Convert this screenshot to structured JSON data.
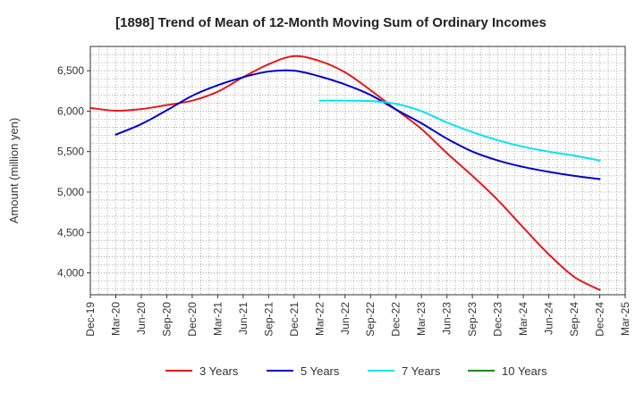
{
  "chart_data": {
    "type": "line",
    "title": "[1898]  Trend of Mean of 12-Month Moving Sum of Ordinary Incomes",
    "xlabel": "",
    "ylabel": "Amount (million yen)",
    "ylim": [
      3730,
      6800
    ],
    "y_ticks": [
      4000,
      4500,
      5000,
      5500,
      6000,
      6500
    ],
    "y_tick_labels": [
      "4,000",
      "4,500",
      "5,000",
      "5,500",
      "6,000",
      "6,500"
    ],
    "categories": [
      "Dec-19",
      "Mar-20",
      "Jun-20",
      "Sep-20",
      "Dec-20",
      "Mar-21",
      "Jun-21",
      "Sep-21",
      "Dec-21",
      "Mar-22",
      "Jun-22",
      "Sep-22",
      "Dec-22",
      "Mar-23",
      "Jun-23",
      "Sep-23",
      "Dec-23",
      "Mar-24",
      "Jun-24",
      "Sep-24",
      "Dec-24",
      "Mar-25"
    ],
    "grid": true,
    "legend_position": "bottom",
    "series": [
      {
        "name": "3 Years",
        "color": "#e41a1c",
        "values": [
          6040,
          6005,
          6025,
          6075,
          6130,
          6240,
          6420,
          6580,
          6680,
          6620,
          6480,
          6260,
          6020,
          5780,
          5480,
          5200,
          4900,
          4560,
          4230,
          3950,
          3790,
          null
        ]
      },
      {
        "name": "5 Years",
        "color": "#0000cc",
        "values": [
          null,
          5710,
          5840,
          6010,
          6190,
          6320,
          6420,
          6490,
          6500,
          6430,
          6330,
          6200,
          6020,
          5850,
          5660,
          5500,
          5390,
          5310,
          5250,
          5200,
          5160,
          null
        ]
      },
      {
        "name": "7 Years",
        "color": "#00e5ee",
        "values": [
          null,
          null,
          null,
          null,
          null,
          null,
          null,
          null,
          null,
          6130,
          6130,
          6125,
          6090,
          6000,
          5860,
          5740,
          5640,
          5560,
          5500,
          5450,
          5390,
          null
        ]
      },
      {
        "name": "10 Years",
        "color": "#1a8a1a",
        "values": [
          null,
          null,
          null,
          null,
          null,
          null,
          null,
          null,
          null,
          null,
          null,
          null,
          null,
          null,
          null,
          null,
          null,
          null,
          null,
          null,
          null,
          null
        ]
      }
    ]
  }
}
